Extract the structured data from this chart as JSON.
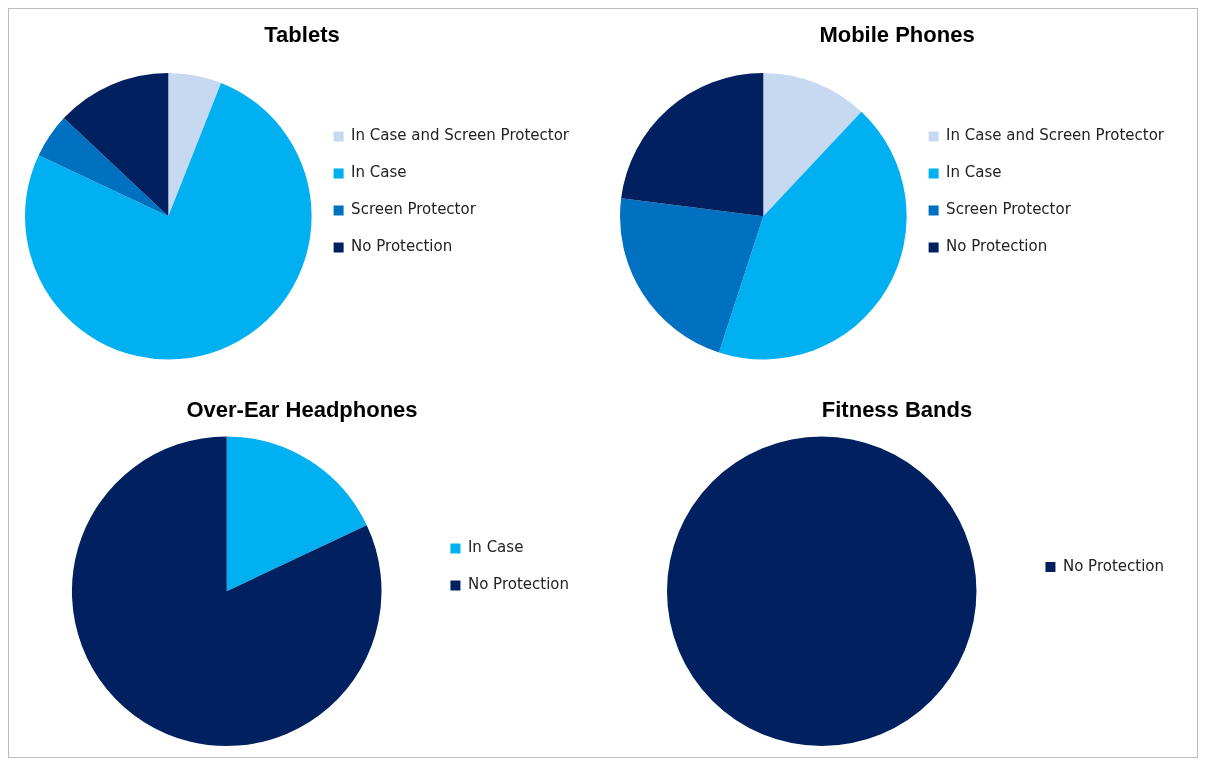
{
  "chart_data": [
    {
      "type": "pie",
      "title": "Tablets",
      "categories": [
        "In Case and Screen Protector",
        "In Case",
        "Screen Protector",
        "No Protection"
      ],
      "values": [
        6,
        76,
        5,
        13
      ],
      "colors": [
        "#c6d9f1",
        "#00b0f0",
        "#0070c0",
        "#002060"
      ],
      "legend": "right"
    },
    {
      "type": "pie",
      "title": "Mobile Phones",
      "categories": [
        "In Case and Screen Protector",
        "In Case",
        "Screen Protector",
        "No Protection"
      ],
      "values": [
        12,
        43,
        22,
        23
      ],
      "colors": [
        "#c6d9f1",
        "#00b0f0",
        "#0070c0",
        "#002060"
      ],
      "legend": "right"
    },
    {
      "type": "pie",
      "title": "Over-Ear Headphones",
      "categories": [
        "In Case",
        "No Protection"
      ],
      "values": [
        18,
        82
      ],
      "colors": [
        "#00b0f0",
        "#002060"
      ],
      "legend": "right"
    },
    {
      "type": "pie",
      "title": "Fitness Bands",
      "categories": [
        "No Protection"
      ],
      "values": [
        100
      ],
      "colors": [
        "#002060"
      ],
      "legend": "right"
    }
  ]
}
